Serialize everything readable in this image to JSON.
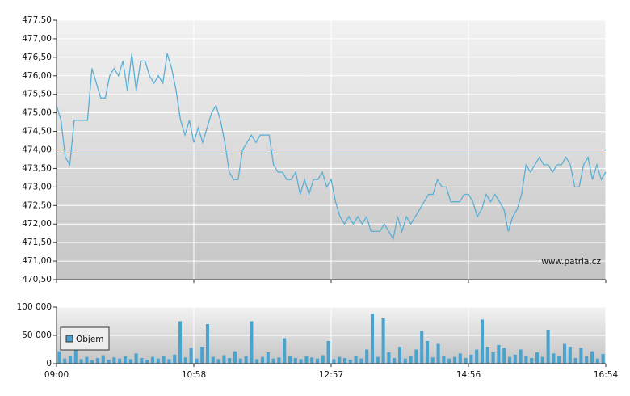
{
  "chart_data": [
    {
      "type": "line",
      "color": "#5aafd6",
      "values": [
        475.2,
        474.8,
        473.8,
        473.6,
        474.8,
        474.8,
        474.8,
        474.8,
        476.2,
        475.8,
        475.4,
        475.4,
        476.0,
        476.2,
        476.0,
        476.4,
        475.6,
        476.6,
        475.6,
        476.4,
        476.4,
        476.0,
        475.8,
        476.0,
        475.8,
        476.6,
        476.2,
        475.6,
        474.8,
        474.4,
        474.8,
        474.2,
        474.6,
        474.2,
        474.6,
        475.0,
        475.2,
        474.8,
        474.2,
        473.4,
        473.2,
        473.2,
        474.0,
        474.2,
        474.4,
        474.2,
        474.4,
        474.4,
        474.4,
        473.6,
        473.4,
        473.4,
        473.2,
        473.2,
        473.4,
        472.8,
        473.2,
        472.8,
        473.2,
        473.2,
        473.4,
        473.0,
        473.2,
        472.6,
        472.2,
        472.0,
        472.2,
        472.0,
        472.2,
        472.0,
        472.2,
        471.8,
        471.8,
        471.8,
        472.0,
        471.8,
        471.6,
        472.2,
        471.8,
        472.2,
        472.0,
        472.2,
        472.4,
        472.6,
        472.8,
        472.8,
        473.2,
        473.0,
        473.0,
        472.6,
        472.6,
        472.6,
        472.8,
        472.8,
        472.6,
        472.2,
        472.4,
        472.8,
        472.6,
        472.8,
        472.6,
        472.4,
        471.8,
        472.2,
        472.4,
        472.8,
        473.6,
        473.4,
        473.6,
        473.8,
        473.6,
        473.6,
        473.4,
        473.6,
        473.6,
        473.8,
        473.6,
        473.0,
        473.0,
        473.6,
        473.8,
        473.2,
        473.6,
        473.2,
        473.4
      ],
      "ylim": [
        470.5,
        477.5
      ],
      "yticks": [
        {
          "value": 470.5,
          "label": "470,50"
        },
        {
          "value": 471,
          "label": "471,00"
        },
        {
          "value": 471.5,
          "label": "471,50"
        },
        {
          "value": 472,
          "label": "472,00"
        },
        {
          "value": 472.5,
          "label": "472,50"
        },
        {
          "value": 473,
          "label": "473,00"
        },
        {
          "value": 473.5,
          "label": "473,50"
        },
        {
          "value": 474,
          "label": "474,00"
        },
        {
          "value": 474.5,
          "label": "474,50"
        },
        {
          "value": 475,
          "label": "475,00"
        },
        {
          "value": 475.5,
          "label": "475,50"
        },
        {
          "value": 476,
          "label": "476,00"
        },
        {
          "value": 476.5,
          "label": "476,50"
        },
        {
          "value": 477,
          "label": "477,00"
        },
        {
          "value": 477.5,
          "label": "477,50"
        }
      ],
      "reference_line": {
        "value": 474,
        "color": "#cc0000"
      },
      "watermark": "www.patria.cz",
      "grid": true
    },
    {
      "type": "bar",
      "series": [
        {
          "name": "Objem",
          "color": "#4aa3cf",
          "values": [
            22000,
            9000,
            14000,
            30000,
            8000,
            12000,
            6000,
            10000,
            15000,
            7000,
            11000,
            9000,
            13000,
            8000,
            18000,
            10000,
            7000,
            12000,
            9000,
            14000,
            8000,
            16000,
            75000,
            11000,
            28000,
            9000,
            30000,
            70000,
            12000,
            8000,
            15000,
            10000,
            22000,
            9000,
            13000,
            75000,
            8000,
            12000,
            20000,
            9000,
            11000,
            45000,
            14000,
            10000,
            8000,
            13000,
            11000,
            9000,
            15000,
            40000,
            8000,
            12000,
            10000,
            7000,
            14000,
            9000,
            25000,
            88000,
            12000,
            80000,
            20000,
            10000,
            30000,
            9000,
            14000,
            25000,
            58000,
            40000,
            11000,
            35000,
            14000,
            9000,
            12000,
            18000,
            10000,
            16000,
            25000,
            78000,
            30000,
            20000,
            33000,
            28000,
            12000,
            16000,
            25000,
            14000,
            10000,
            20000,
            12000,
            60000,
            18000,
            14000,
            35000,
            30000,
            10000,
            28000,
            13000,
            22000,
            9000,
            17000
          ]
        }
      ],
      "ylim": [
        0,
        100000
      ],
      "yticks": [
        0,
        {
          "value": 50000,
          "label": "50 000"
        },
        {
          "value": 100000,
          "label": "100 000"
        }
      ],
      "xticks": [
        "09:00",
        "10:58",
        "12:57",
        "14:56",
        "16:54"
      ],
      "legend": "upper-left"
    }
  ]
}
